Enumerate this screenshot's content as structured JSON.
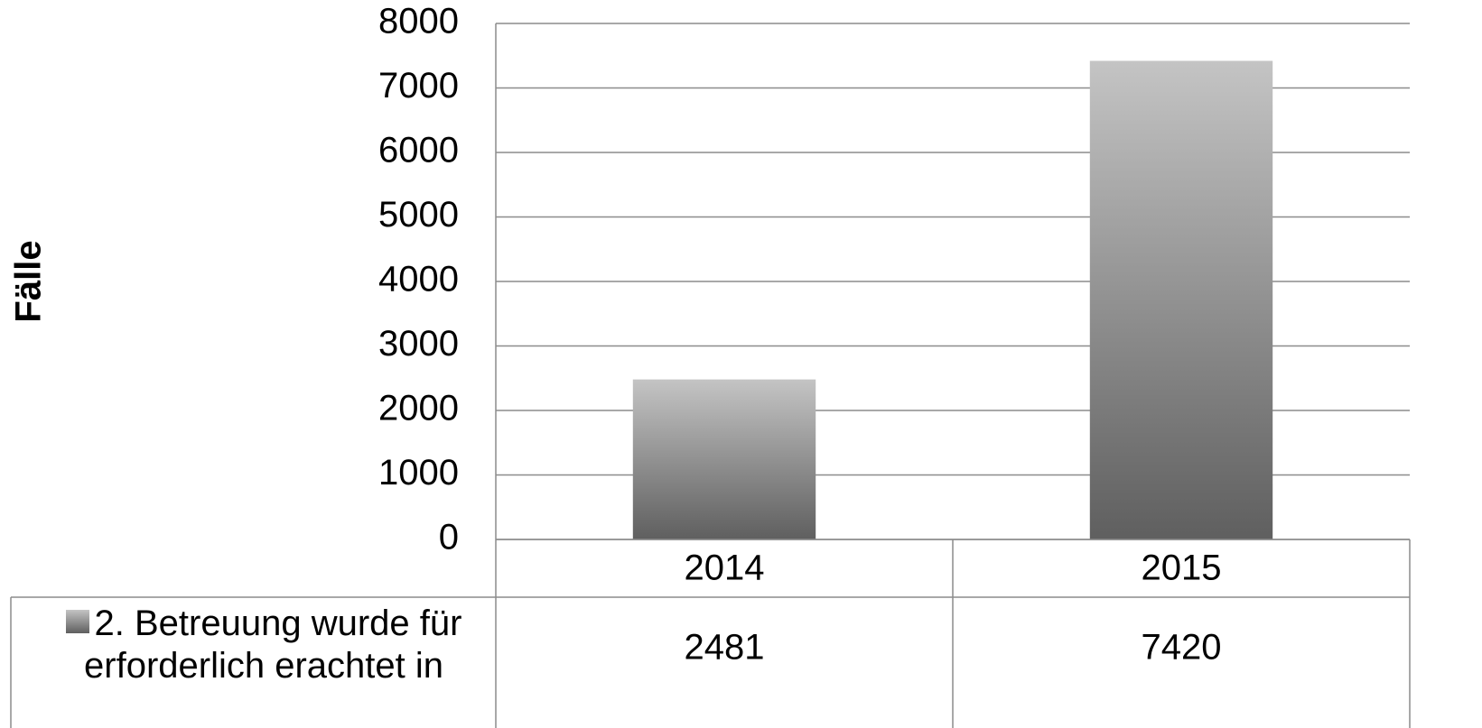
{
  "chart_data": {
    "type": "bar",
    "y_label": "Fälle",
    "categories": [
      "2014",
      "2015"
    ],
    "series": [
      {
        "name": "2. Betreuung wurde für erforderlich erachtet in",
        "values": [
          2481,
          7420
        ],
        "color": [
          "#c4c4c4",
          "#5f5f5f"
        ]
      }
    ],
    "ylim": [
      0,
      8000
    ],
    "yticks": [
      0,
      1000,
      2000,
      3000,
      4000,
      5000,
      6000,
      7000,
      8000
    ],
    "grid": true,
    "data_table": true
  }
}
